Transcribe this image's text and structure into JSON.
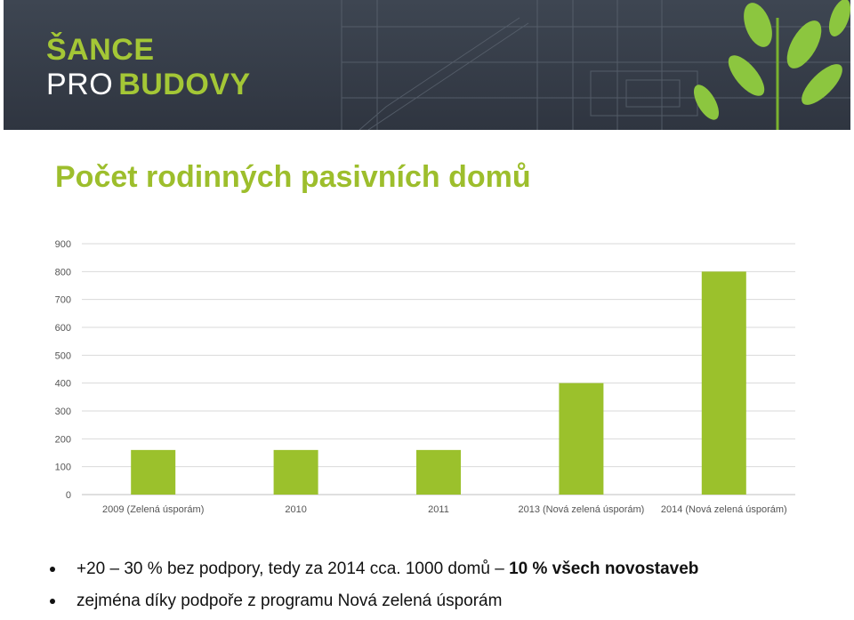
{
  "header": {
    "logo_line1": "ŠANCE",
    "logo_pro": "PRO",
    "logo_budovy": "BUDOVY",
    "accent_color": "#a4c736",
    "background_color": "#353b46"
  },
  "page_title": "Počet rodinných pasivních domů",
  "chart_data": {
    "type": "bar",
    "categories": [
      "2009 (Zelená úsporám)",
      "2010",
      "2011",
      "2013 (Nová zelená úsporám)",
      "2014 (Nová zelená úsporám)"
    ],
    "values": [
      160,
      160,
      160,
      400,
      800
    ],
    "title": "",
    "xlabel": "",
    "ylabel": "",
    "ylim": [
      0,
      900
    ],
    "yticks": [
      0,
      100,
      200,
      300,
      400,
      500,
      600,
      700,
      800,
      900
    ],
    "grid": true,
    "legend": "none",
    "bar_color": "#9bc12c"
  },
  "bullets": [
    {
      "normal": "+20 – 30 % bez podpory, tedy za 2014 cca. 1000 domů – ",
      "strong": "10 % všech novostaveb"
    },
    {
      "normal": "zejména díky podpoře z programu Nová zelená úsporám",
      "strong": ""
    }
  ]
}
